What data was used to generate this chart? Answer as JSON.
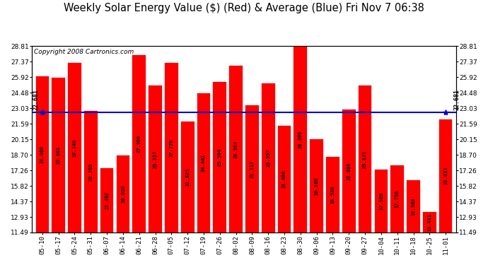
{
  "title": "Weekly Solar Energy Value ($) (Red) & Average (Blue) Fri Nov 7 06:38",
  "copyright": "Copyright 2008 Cartronics.com",
  "average": 22.681,
  "categories": [
    "05-10",
    "05-17",
    "05-24",
    "05-31",
    "06-07",
    "06-14",
    "06-21",
    "06-28",
    "07-05",
    "07-12",
    "07-19",
    "07-26",
    "08-02",
    "08-09",
    "08-16",
    "08-23",
    "08-30",
    "09-06",
    "09-13",
    "09-20",
    "09-27",
    "10-04",
    "10-11",
    "10-18",
    "10-25",
    "11-01"
  ],
  "values": [
    26.0,
    25.863,
    27.246,
    22.763,
    17.492,
    18.63,
    27.999,
    25.157,
    27.27,
    21.825,
    24.441,
    25.504,
    26.992,
    23.317,
    25.357,
    21.406,
    28.809,
    20.186,
    18.52,
    22.889,
    25.172,
    17.309,
    17.758,
    16.368,
    13.411,
    22.033
  ],
  "bar_color": "#ff0000",
  "avg_line_color": "#0000cc",
  "fig_bg_color": "#ffffff",
  "plot_bg_color": "#ffffff",
  "grid_color": "#dddddd",
  "yticks": [
    11.49,
    12.93,
    14.37,
    15.82,
    17.26,
    18.7,
    20.15,
    21.59,
    23.03,
    24.48,
    25.92,
    27.37,
    28.81
  ],
  "ymin": 11.49,
  "ymax": 28.81,
  "title_fontsize": 10.5,
  "copyright_fontsize": 6.5,
  "value_fontsize": 5.0,
  "tick_fontsize": 6.5,
  "avg_label_fontsize": 6.0
}
